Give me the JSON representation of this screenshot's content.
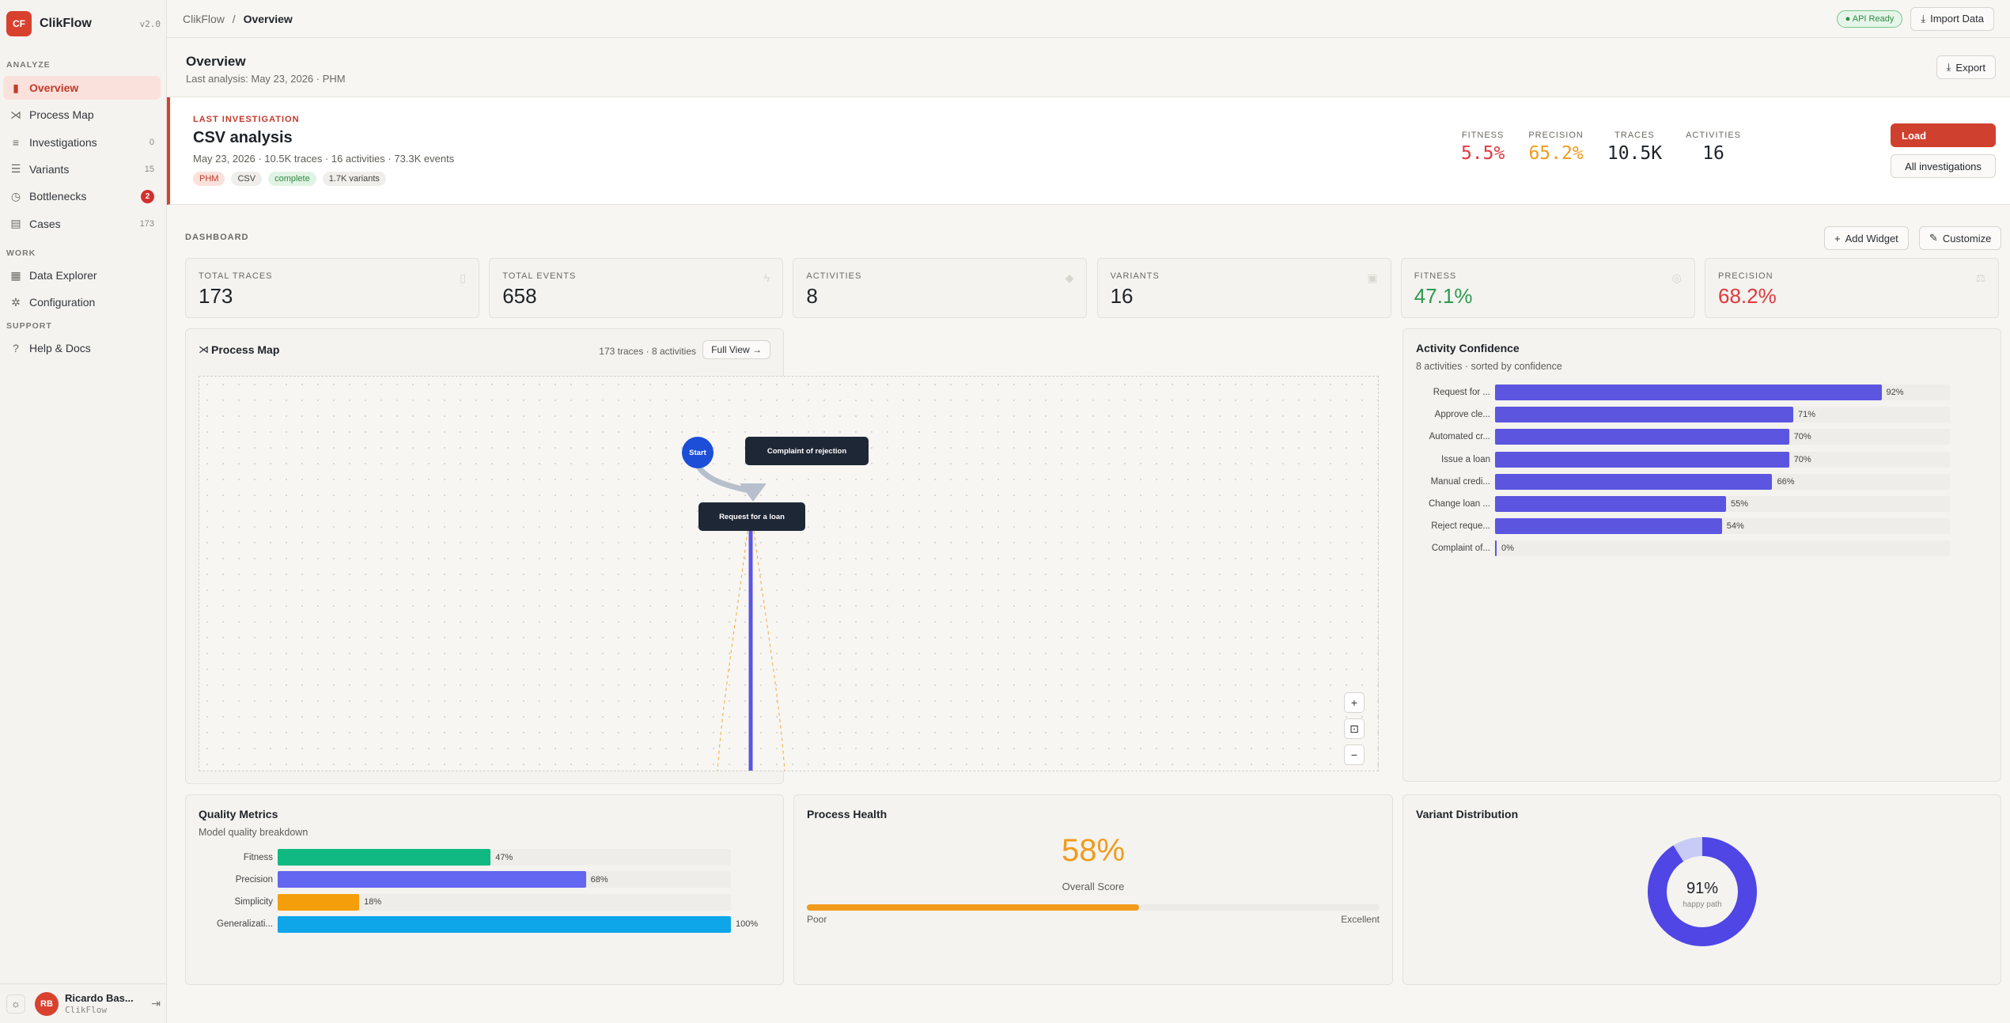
{
  "app": {
    "logo": "CF",
    "name": "ClikFlow",
    "version": "v2.0"
  },
  "sidebar": {
    "sections": [
      {
        "label": "ANALYZE",
        "items": [
          {
            "label": "Overview",
            "icon": "bar-chart-icon",
            "glyph": "▮",
            "active": true
          },
          {
            "label": "Process Map",
            "icon": "share-nodes-icon",
            "glyph": "⋊"
          },
          {
            "label": "Investigations",
            "icon": "list-icon",
            "glyph": "≡",
            "count": "0"
          },
          {
            "label": "Variants",
            "icon": "filter-lines-icon",
            "glyph": "☰",
            "count": "15"
          },
          {
            "label": "Bottlenecks",
            "icon": "clock-icon",
            "glyph": "◷",
            "badge": "2"
          },
          {
            "label": "Cases",
            "icon": "table-icon",
            "glyph": "▤",
            "count": "173"
          }
        ]
      },
      {
        "label": "WORK",
        "items": [
          {
            "label": "Data Explorer",
            "icon": "grid-icon",
            "glyph": "▦"
          },
          {
            "label": "Configuration",
            "icon": "gear-icon",
            "glyph": "✲"
          }
        ]
      },
      {
        "label": "SUPPORT",
        "items": [
          {
            "label": "Help & Docs",
            "icon": "help-circle-icon",
            "glyph": "?"
          }
        ]
      }
    ]
  },
  "user": {
    "initials": "RB",
    "name": "Ricardo Bas...",
    "org": "ClikFlow"
  },
  "topbar": {
    "crumb_root": "ClikFlow",
    "crumb_sep": "/",
    "crumb_current": "Overview",
    "api_status": "● API Ready",
    "import_label": "Import Data"
  },
  "page": {
    "title": "Overview",
    "subtitle": "Last analysis: May 23, 2026 · PHM",
    "export_label": "Export"
  },
  "investigation": {
    "eyebrow": "LAST INVESTIGATION",
    "title": "CSV analysis",
    "meta": "May 23, 2026 · 10.5K traces · 16 activities · 73.3K events",
    "tags": [
      {
        "label": "PHM",
        "style": "red"
      },
      {
        "label": "CSV",
        "style": "gray"
      },
      {
        "label": "complete",
        "style": "green"
      },
      {
        "label": "1.7K variants",
        "style": "gray"
      }
    ],
    "kpis": [
      {
        "label": "FITNESS",
        "value": "5.5%",
        "color": "#e0393e"
      },
      {
        "label": "PRECISION",
        "value": "65.2%",
        "color": "#f19b1c"
      },
      {
        "label": "TRACES",
        "value": "10.5K",
        "color": "#1f2329"
      },
      {
        "label": "ACTIVITIES",
        "value": "16",
        "color": "#1f2329"
      }
    ],
    "load_label": "Load",
    "all_label": "All investigations"
  },
  "dashboard": {
    "label": "DASHBOARD",
    "add_widget": "Add Widget",
    "customize": "Customize"
  },
  "stats": [
    {
      "label": "TOTAL TRACES",
      "value": "173",
      "color": "#1f2329",
      "icon": "clipboard-icon",
      "glyph": "▯"
    },
    {
      "label": "TOTAL EVENTS",
      "value": "658",
      "color": "#1f2329",
      "icon": "bolt-icon",
      "glyph": "ϟ"
    },
    {
      "label": "ACTIVITIES",
      "value": "8",
      "color": "#1f2329",
      "icon": "diamond-icon",
      "glyph": "◆"
    },
    {
      "label": "VARIANTS",
      "value": "16",
      "color": "#1f2329",
      "icon": "layers-icon",
      "glyph": "▣"
    },
    {
      "label": "FITNESS",
      "value": "47.1%",
      "color": "#2e9a4f",
      "icon": "target-icon",
      "glyph": "◎"
    },
    {
      "label": "PRECISION",
      "value": "68.2%",
      "color": "#e0393e",
      "icon": "scale-icon",
      "glyph": "⚖"
    }
  ],
  "process_map": {
    "title": "Process Map",
    "meta": "173 traces · 8 activities",
    "full_view": "Full View →",
    "nodes": {
      "start": "Start",
      "complaint": "Complaint of rejection",
      "request": "Request for a loan"
    }
  },
  "activity_confidence": {
    "title": "Activity Confidence",
    "subtitle": "8 activities · sorted by confidence",
    "items": [
      {
        "label": "Request for ...",
        "value": 92,
        "text": "92%"
      },
      {
        "label": "Approve cle...",
        "value": 71,
        "text": "71%"
      },
      {
        "label": "Automated cr...",
        "value": 70,
        "text": "70%"
      },
      {
        "label": "Issue a loan",
        "value": 70,
        "text": "70%"
      },
      {
        "label": "Manual credi...",
        "value": 66,
        "text": "66%"
      },
      {
        "label": "Change loan ...",
        "value": 55,
        "text": "55%"
      },
      {
        "label": "Reject reque...",
        "value": 54,
        "text": "54%"
      },
      {
        "label": "Complaint of...",
        "value": 0,
        "text": "0%"
      }
    ]
  },
  "quality": {
    "title": "Quality Metrics",
    "subtitle": "Model quality breakdown",
    "items": [
      {
        "label": "Fitness",
        "value": 47,
        "text": "47%",
        "color": "#10b981"
      },
      {
        "label": "Precision",
        "value": 68,
        "text": "68%",
        "color": "#6366f1"
      },
      {
        "label": "Simplicity",
        "value": 18,
        "text": "18%",
        "color": "#f59e0b"
      },
      {
        "label": "Generalizati...",
        "value": 100,
        "text": "100%",
        "color": "#0ea5e9"
      }
    ]
  },
  "health": {
    "title": "Process Health",
    "value": 58,
    "text": "58%",
    "label": "Overall Score",
    "poor": "Poor",
    "excellent": "Excellent"
  },
  "variants": {
    "title": "Variant Distribution",
    "value": 91,
    "text": "91%",
    "label": "happy path"
  }
}
